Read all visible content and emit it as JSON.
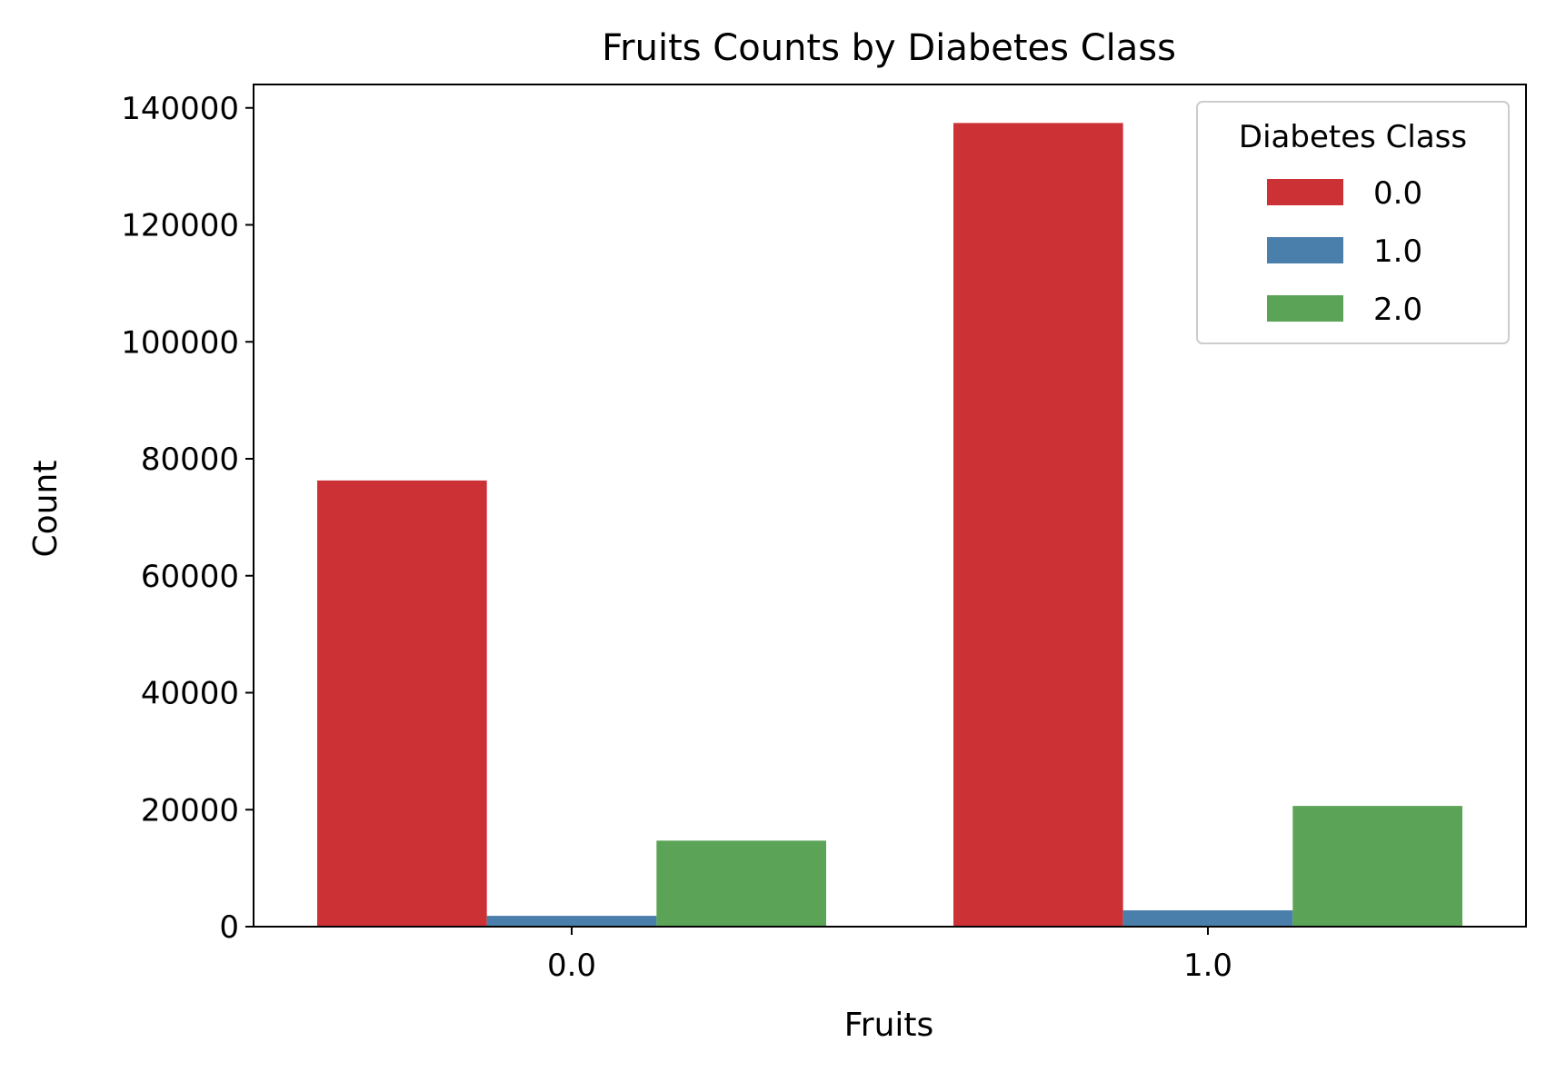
{
  "chart_data": {
    "type": "bar",
    "title": "Fruits Counts by Diabetes Class",
    "xlabel": "Fruits",
    "ylabel": "Count",
    "categories": [
      "0.0",
      "1.0"
    ],
    "series": [
      {
        "name": "0.0",
        "color": "#cc3135",
        "values": [
          76287,
          137416
        ]
      },
      {
        "name": "1.0",
        "color": "#4a7eab",
        "values": [
          1846,
          2785
        ]
      },
      {
        "name": "2.0",
        "color": "#5ba356",
        "values": [
          14706,
          20640
        ]
      }
    ],
    "ylim": [
      0,
      144000
    ],
    "yticks": [
      "0",
      "20000",
      "40000",
      "60000",
      "80000",
      "100000",
      "120000",
      "140000"
    ],
    "grid": false,
    "legend": {
      "title": "Diabetes Class",
      "placement": "top-right"
    }
  }
}
